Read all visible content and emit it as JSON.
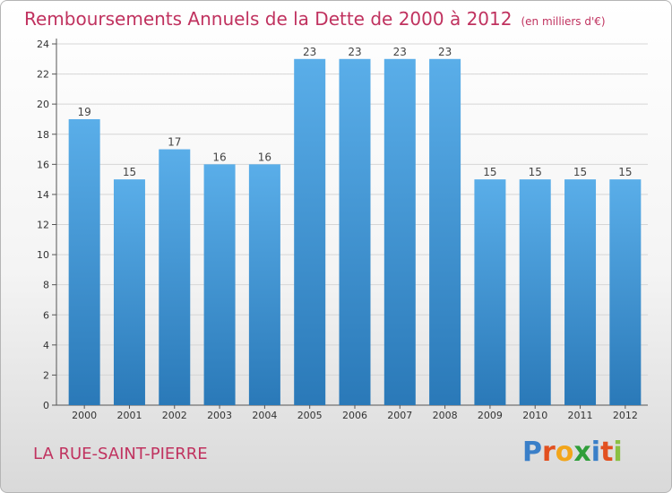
{
  "title": "Remboursements Annuels de la Dette de 2000 à 2012",
  "unit": "(en milliers d'€)",
  "location": "LA RUE-SAINT-PIERRE",
  "brand": {
    "name": "Proxiti",
    "letters": [
      {
        "char": "P",
        "color": "#3a7fc8"
      },
      {
        "char": "r",
        "color": "#e2501f"
      },
      {
        "char": "o",
        "color": "#f2a51a"
      },
      {
        "char": "x",
        "color": "#2f9e3a"
      },
      {
        "char": "i",
        "color": "#3a7fc8"
      },
      {
        "char": "t",
        "color": "#e2501f"
      },
      {
        "char": "i",
        "color": "#8ac043"
      }
    ]
  },
  "colors": {
    "title": "#c0325f",
    "bar_top": "#5aaee9",
    "bar_bottom": "#2a79b8",
    "grid": "#d6d6d6",
    "axis": "#555555"
  },
  "chart_data": {
    "type": "bar",
    "categories": [
      "2000",
      "2001",
      "2002",
      "2003",
      "2004",
      "2005",
      "2006",
      "2007",
      "2008",
      "2009",
      "2010",
      "2011",
      "2012"
    ],
    "values": [
      19,
      15,
      17,
      16,
      16,
      23,
      23,
      23,
      23,
      15,
      15,
      15,
      15
    ],
    "title": "Remboursements Annuels de la Dette de 2000 à 2012",
    "ylim": [
      0,
      24
    ],
    "yticks": [
      0,
      2,
      4,
      6,
      8,
      10,
      12,
      14,
      16,
      18,
      20,
      22,
      24
    ],
    "grid": true,
    "legend": "none"
  }
}
